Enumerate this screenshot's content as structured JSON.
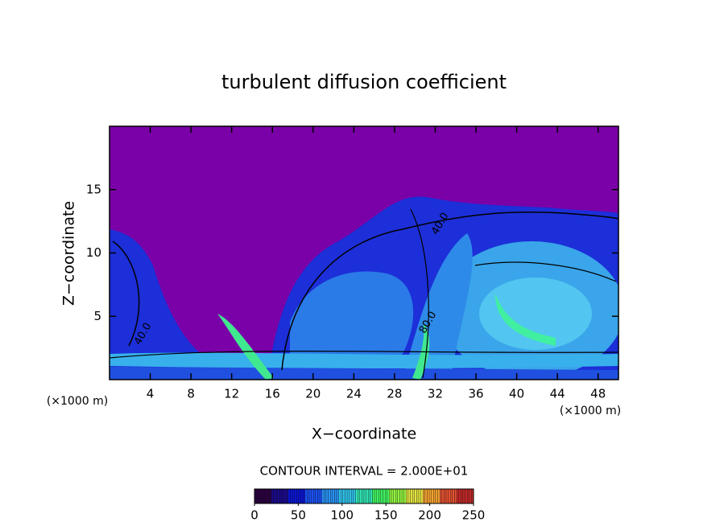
{
  "chart_data": {
    "type": "contour",
    "title": "turbulent diffusion coefficient",
    "xlabel": "X−coordinate",
    "ylabel": "Z−coordinate",
    "x_unit_label": "(×1000 m)",
    "xlim": [
      0,
      50
    ],
    "xticks": [
      4,
      8,
      12,
      16,
      20,
      24,
      28,
      32,
      36,
      40,
      44,
      48
    ],
    "ylim": [
      0,
      20
    ],
    "yticks": [
      5,
      10,
      15
    ],
    "contour_interval_label": "CONTOUR INTERVAL = 2.000E+01",
    "contour_labels": [
      {
        "text": "40.0",
        "x": 32.5,
        "y": 12.3
      },
      {
        "text": "40.0",
        "x": 3.3,
        "y": 3.6
      },
      {
        "text": "80.0",
        "x": 31.3,
        "y": 4.5
      }
    ],
    "clim": [
      0,
      250
    ],
    "cticks": [
      0,
      50,
      100,
      150,
      200,
      250
    ],
    "colormap": [
      "#2a0040",
      "#1a0a8a",
      "#0a14d0",
      "#1a50f0",
      "#2890f0",
      "#30c0e8",
      "#30e0b0",
      "#40f060",
      "#90f040",
      "#e0e040",
      "#f0a030",
      "#e05030",
      "#c02828"
    ]
  }
}
